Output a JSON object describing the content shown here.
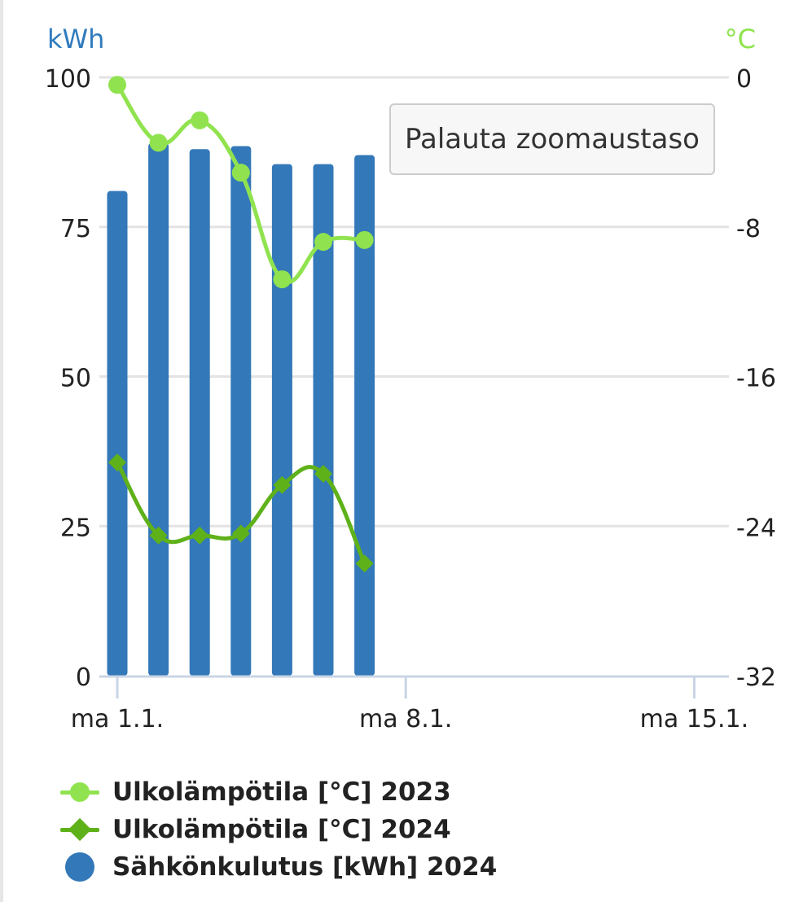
{
  "chart_data": {
    "type": "bar",
    "x": [
      "1.1.",
      "2.1.",
      "3.1.",
      "4.1.",
      "5.1.",
      "6.1.",
      "7.1."
    ],
    "xlim": [
      "31.12.",
      "16.1."
    ],
    "x_ticks": [
      "ma 1.1.",
      "ma 8.1.",
      "ma 15.1."
    ],
    "y_left": {
      "label": "kWh",
      "ylim": [
        0,
        100
      ],
      "ticks": [
        "0",
        "25",
        "50",
        "75",
        "100"
      ],
      "color": "#2f7bbd"
    },
    "y_right": {
      "label": "°C",
      "ylim": [
        -32,
        0
      ],
      "ticks": [
        "-32",
        "-24",
        "-16",
        "-8",
        "0"
      ],
      "color": "#8ee44c"
    },
    "series": [
      {
        "name": "Ulkolämpötila [°C] 2023",
        "type": "line",
        "axis": "right",
        "marker": "circle",
        "color": "#90e34f",
        "values": [
          -0.4,
          -3.5,
          -2.3,
          -5.1,
          -10.8,
          -8.8,
          -8.7
        ]
      },
      {
        "name": "Ulkolämpötila [°C] 2024",
        "type": "line",
        "axis": "right",
        "marker": "diamond",
        "color": "#5fb11a",
        "values": [
          -20.6,
          -24.5,
          -24.5,
          -24.4,
          -21.8,
          -21.2,
          -26.0
        ]
      },
      {
        "name": "Sähkönkulutus [kWh] 2024",
        "type": "bar",
        "axis": "left",
        "marker": "circle",
        "color": "#3378b8",
        "values": [
          81,
          89,
          88,
          88.5,
          85.5,
          85.5,
          87
        ]
      }
    ],
    "grid": true,
    "legend_position": "bottom-left"
  },
  "ui": {
    "zoom_reset_label": "Palauta zoomaustaso"
  }
}
